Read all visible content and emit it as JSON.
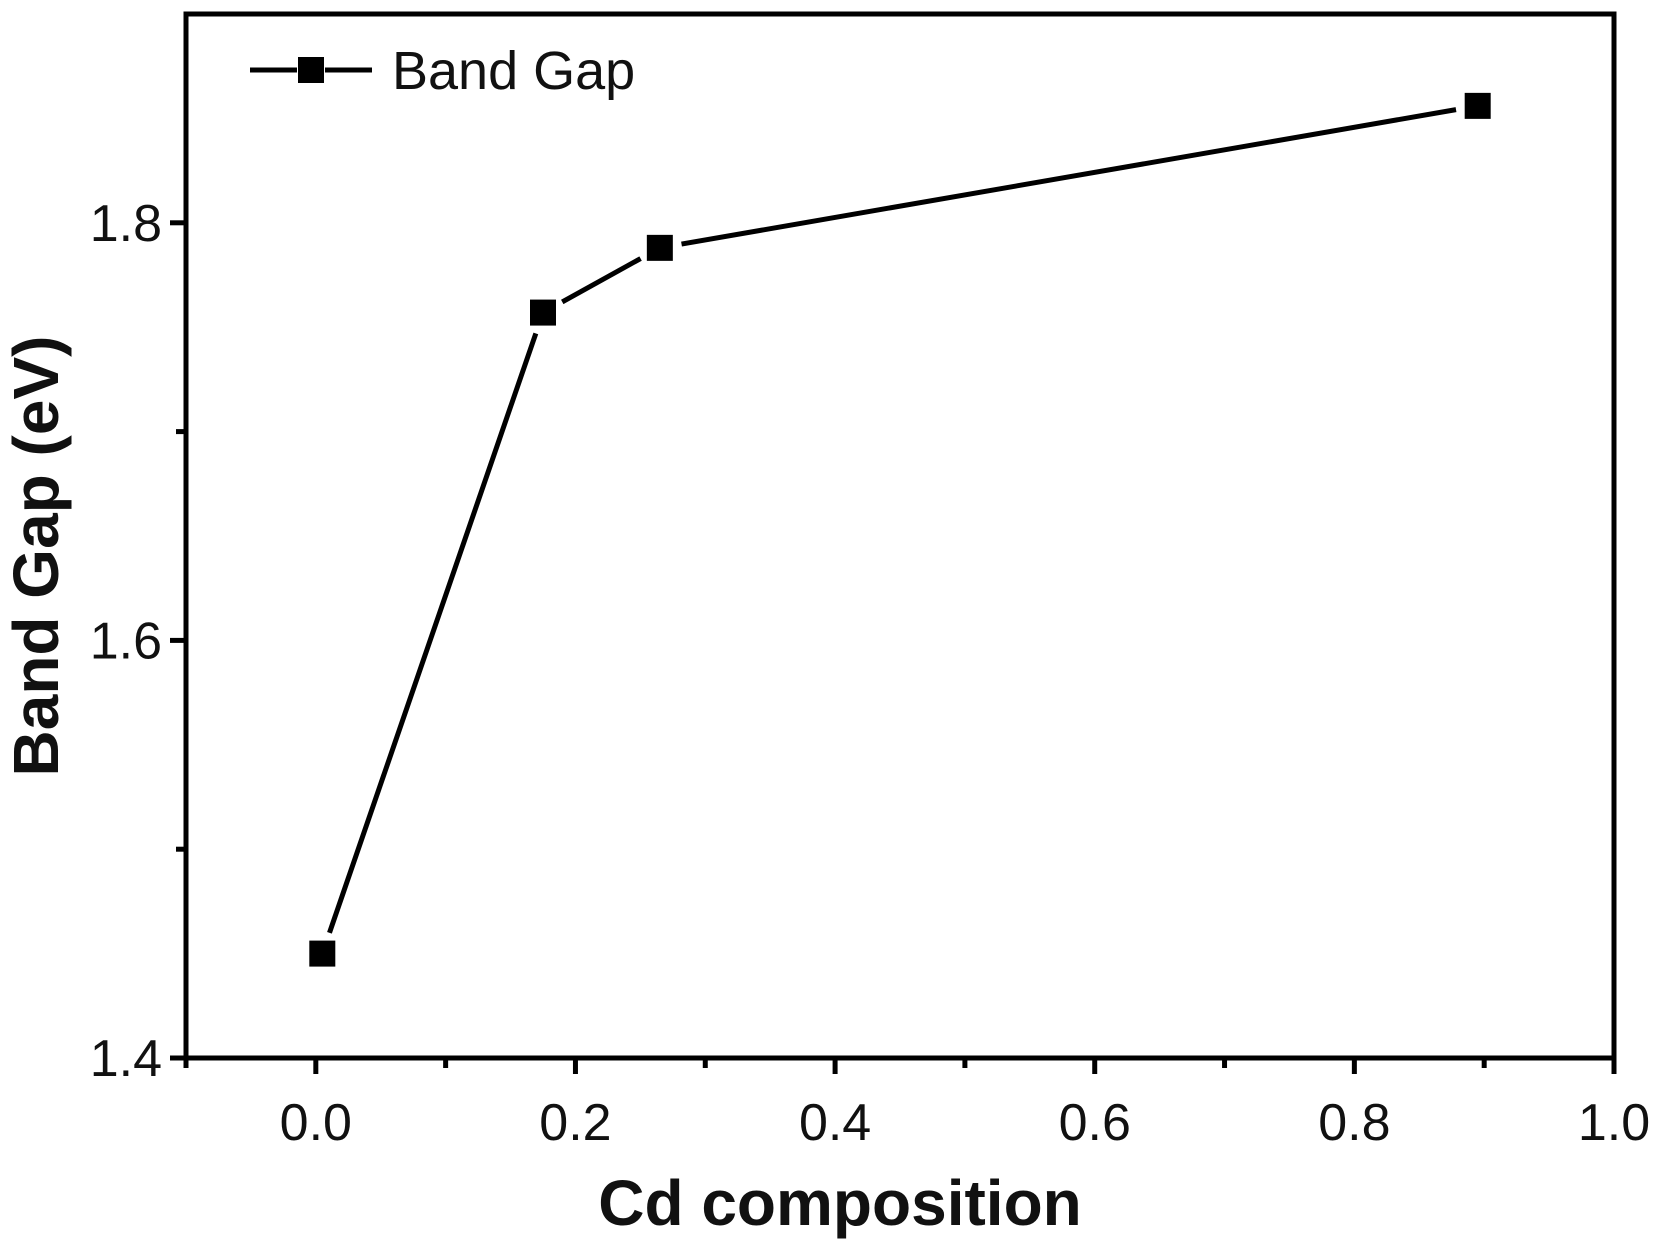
{
  "chart_data": {
    "type": "line",
    "title": "",
    "xlabel": "Cd composition",
    "ylabel": "Band Gap (eV)",
    "xlim": [
      -0.1,
      1.0
    ],
    "ylim": [
      1.4,
      1.9
    ],
    "xticks": [
      {
        "value": 0.0,
        "label": "0.0"
      },
      {
        "value": 0.2,
        "label": "0.2"
      },
      {
        "value": 0.4,
        "label": "0.4"
      },
      {
        "value": 0.6,
        "label": "0.6"
      },
      {
        "value": 0.8,
        "label": "0.8"
      },
      {
        "value": 1.0,
        "label": "1.0"
      }
    ],
    "xminorticks": [
      -0.1,
      0.1,
      0.3,
      0.5,
      0.7,
      0.9
    ],
    "yticks": [
      {
        "value": 1.4,
        "label": "1.4"
      },
      {
        "value": 1.6,
        "label": "1.6"
      },
      {
        "value": 1.8,
        "label": "1.8"
      }
    ],
    "yminorticks": [
      1.5,
      1.7
    ],
    "grid": false,
    "legend_position": "top-left",
    "series": [
      {
        "name": "Band Gap",
        "marker": "square",
        "color": "#000000",
        "x": [
          0.005,
          0.175,
          0.265,
          0.895
        ],
        "y": [
          1.45,
          1.757,
          1.788,
          1.856
        ]
      }
    ]
  }
}
